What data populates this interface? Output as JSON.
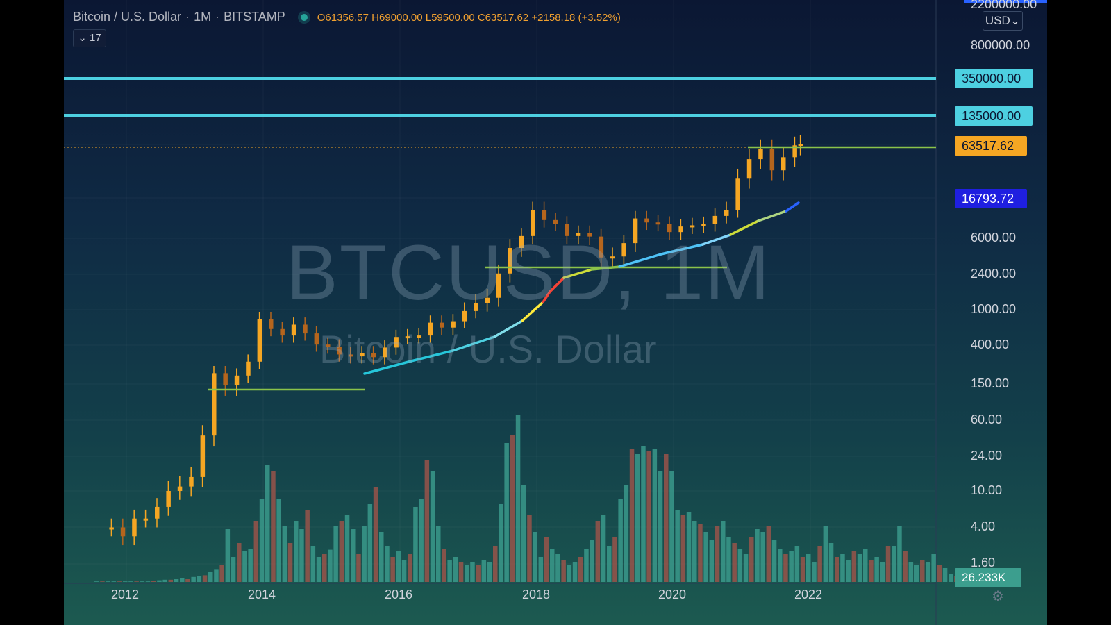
{
  "header": {
    "symbol": "Bitcoin / U.S. Dollar",
    "interval": "1M",
    "exchange": "BITSTAMP",
    "open": "O61356.57",
    "high": "H69000.00",
    "low": "L59500.00",
    "close": "C63517.62",
    "change": "+2158.18 (+3.52%)",
    "indicator_count": "17"
  },
  "currency": "USD",
  "watermark": {
    "ticker": "BTCUSD, 1M",
    "name": "Bitcoin / U.S. Dollar"
  },
  "price_scale": {
    "top_label": "2200000.00",
    "labels": [
      "800000.00",
      "6000.00",
      "2400.00",
      "1000.00",
      "400.00",
      "150.00",
      "60.00",
      "24.00",
      "10.00",
      "4.00",
      "1.60"
    ]
  },
  "tags": {
    "level_high": "350000.00",
    "level_mid": "135000.00",
    "last_price": "63517.62",
    "ma_value": "16793.72",
    "volume": "26.233K"
  },
  "time_scale": [
    "2012",
    "2014",
    "2016",
    "2018",
    "2020",
    "2022"
  ],
  "colors": {
    "up": "#f5a623",
    "down": "#b5651d",
    "level": "#4dd0e1",
    "support": "#8bc34a",
    "volume_up": "#3c9e8e",
    "volume_down": "#a0544a"
  },
  "icons": {
    "settings": "gear-icon",
    "collapse": "chevron-down-icon"
  },
  "chart_data": {
    "type": "candlestick",
    "scale": "log",
    "interval": "1M",
    "horizontal_levels": [
      350000,
      135000
    ],
    "close_series": [
      [
        "2011-10",
        4
      ],
      [
        "2011-12",
        3.2
      ],
      [
        "2012-02",
        5
      ],
      [
        "2012-04",
        5
      ],
      [
        "2012-06",
        6.7
      ],
      [
        "2012-08",
        10
      ],
      [
        "2012-10",
        11
      ],
      [
        "2012-12",
        13.5
      ],
      [
        "2013-02",
        33
      ],
      [
        "2013-04",
        140
      ],
      [
        "2013-06",
        97
      ],
      [
        "2013-08",
        130
      ],
      [
        "2013-10",
        200
      ],
      [
        "2013-12",
        750
      ],
      [
        "2014-02",
        550
      ],
      [
        "2014-04",
        450
      ],
      [
        "2014-06",
        630
      ],
      [
        "2014-08",
        480
      ],
      [
        "2014-10",
        340
      ],
      [
        "2014-12",
        320
      ],
      [
        "2015-02",
        250
      ],
      [
        "2015-04",
        236
      ],
      [
        "2015-06",
        260
      ],
      [
        "2015-08",
        230
      ],
      [
        "2015-10",
        310
      ],
      [
        "2015-12",
        430
      ],
      [
        "2016-02",
        440
      ],
      [
        "2016-04",
        450
      ],
      [
        "2016-06",
        670
      ],
      [
        "2016-08",
        575
      ],
      [
        "2016-10",
        700
      ],
      [
        "2016-12",
        960
      ],
      [
        "2017-02",
        1180
      ],
      [
        "2017-04",
        1350
      ],
      [
        "2017-06",
        2480
      ],
      [
        "2017-08",
        4700
      ],
      [
        "2017-10",
        6400
      ],
      [
        "2017-12",
        13800
      ],
      [
        "2018-02",
        10300
      ],
      [
        "2018-04",
        9240
      ],
      [
        "2018-06",
        6400
      ],
      [
        "2018-08",
        7000
      ],
      [
        "2018-10",
        6300
      ],
      [
        "2018-12",
        3700
      ],
      [
        "2019-02",
        3800
      ],
      [
        "2019-04",
        5300
      ],
      [
        "2019-06",
        10800
      ],
      [
        "2019-08",
        9600
      ],
      [
        "2019-10",
        9200
      ],
      [
        "2019-12",
        7200
      ],
      [
        "2020-02",
        8500
      ],
      [
        "2020-04",
        8800
      ],
      [
        "2020-06",
        9130
      ],
      [
        "2020-08",
        11650
      ],
      [
        "2020-10",
        13800
      ],
      [
        "2020-12",
        29000
      ],
      [
        "2021-02",
        45000
      ],
      [
        "2021-04",
        57000
      ],
      [
        "2021-06",
        35000
      ],
      [
        "2021-08",
        47000
      ],
      [
        "2021-10",
        61300
      ],
      [
        "2021-11",
        63517.62
      ]
    ]
  }
}
